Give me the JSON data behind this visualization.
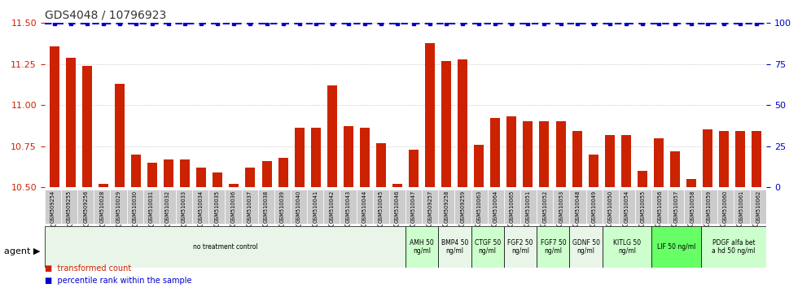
{
  "title": "GDS4048 / 10796923",
  "samples": [
    "GSM509254",
    "GSM509255",
    "GSM509256",
    "GSM510028",
    "GSM510029",
    "GSM510030",
    "GSM510031",
    "GSM510032",
    "GSM510033",
    "GSM510034",
    "GSM510035",
    "GSM510036",
    "GSM510037",
    "GSM510038",
    "GSM510039",
    "GSM510040",
    "GSM510041",
    "GSM510042",
    "GSM510043",
    "GSM510044",
    "GSM510045",
    "GSM510046",
    "GSM510047",
    "GSM509257",
    "GSM509258",
    "GSM509259",
    "GSM510063",
    "GSM510064",
    "GSM510065",
    "GSM510051",
    "GSM510052",
    "GSM510053",
    "GSM510048",
    "GSM510049",
    "GSM510050",
    "GSM510054",
    "GSM510055",
    "GSM510056",
    "GSM510057",
    "GSM510058",
    "GSM510059",
    "GSM510060",
    "GSM510061",
    "GSM510062"
  ],
  "bar_values": [
    11.36,
    11.29,
    11.24,
    10.52,
    11.13,
    10.7,
    10.65,
    10.67,
    10.67,
    10.62,
    10.59,
    10.52,
    10.62,
    10.66,
    10.68,
    10.86,
    10.86,
    11.12,
    10.87,
    10.86,
    10.77,
    10.52,
    10.73,
    11.38,
    11.27,
    11.28,
    10.76,
    10.92,
    10.93,
    10.9,
    10.9,
    10.9,
    10.84,
    10.7,
    10.82,
    10.82,
    10.6,
    10.8,
    10.72,
    10.55,
    10.85,
    10.84,
    10.84,
    10.84
  ],
  "percentile_values": [
    99,
    99,
    99,
    99,
    99,
    99,
    99,
    99,
    99,
    99,
    99,
    99,
    99,
    99,
    99,
    99,
    99,
    99,
    99,
    99,
    99,
    99,
    99,
    99,
    99,
    99,
    99,
    99,
    99,
    99,
    99,
    99,
    99,
    99,
    99,
    99,
    99,
    99,
    99,
    99,
    99,
    99,
    99,
    99
  ],
  "ylim_left": [
    10.5,
    11.5
  ],
  "ylim_right": [
    0,
    100
  ],
  "yticks_left": [
    10.5,
    10.75,
    11.0,
    11.25,
    11.5
  ],
  "yticks_right": [
    0,
    25,
    50,
    75,
    100
  ],
  "bar_color": "#cc2200",
  "percentile_color": "#0000cc",
  "title_color": "#333333",
  "axis_color": "#cc2200",
  "right_axis_color": "#0000cc",
  "grid_color": "#aaaaaa",
  "agent_groups": [
    {
      "label": "no treatment control",
      "start": 0,
      "end": 22,
      "bg": "#e8f5e8"
    },
    {
      "label": "AMH 50\nng/ml",
      "start": 22,
      "end": 24,
      "bg": "#ccffcc"
    },
    {
      "label": "BMP4 50\nng/ml",
      "start": 24,
      "end": 26,
      "bg": "#e8f5e8"
    },
    {
      "label": "CTGF 50\nng/ml",
      "start": 26,
      "end": 28,
      "bg": "#ccffcc"
    },
    {
      "label": "FGF2 50\nng/ml",
      "start": 28,
      "end": 30,
      "bg": "#e8f5e8"
    },
    {
      "label": "FGF7 50\nng/ml",
      "start": 30,
      "end": 32,
      "bg": "#ccffcc"
    },
    {
      "label": "GDNF 50\nng/ml",
      "start": 32,
      "end": 34,
      "bg": "#e8f5e8"
    },
    {
      "label": "KITLG 50\nng/ml",
      "start": 34,
      "end": 37,
      "bg": "#ccffcc"
    },
    {
      "label": "LIF 50 ng/ml",
      "start": 37,
      "end": 40,
      "bg": "#66ff66"
    },
    {
      "label": "PDGF alfa bet\na hd 50 ng/ml",
      "start": 40,
      "end": 44,
      "bg": "#ccffcc"
    }
  ],
  "tick_bg_color": "#cccccc",
  "bar_width": 0.6
}
